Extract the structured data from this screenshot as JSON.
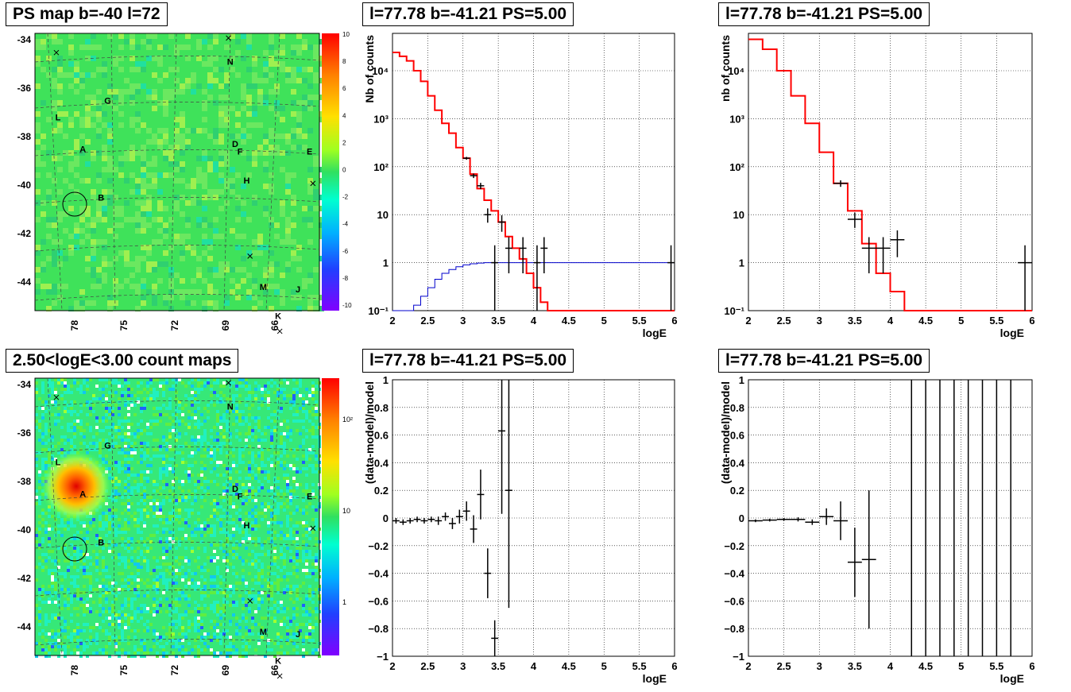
{
  "titles": {
    "map_top": "PS map b=-40 l=72",
    "map_bottom": "2.50<logE<3.00 count maps",
    "plot": "l=77.78 b=-41.21 PS=5.00"
  },
  "map_axes": {
    "y_ticks": [
      "-34",
      "-36",
      "-38",
      "-40",
      "-42",
      "-44"
    ],
    "x_ticks": [
      "78",
      "75",
      "72",
      "69",
      "66"
    ],
    "markers": [
      {
        "label": "L",
        "lon": 79.2,
        "lat": -37.2
      },
      {
        "label": "G",
        "lon": 76.2,
        "lat": -36.5
      },
      {
        "label": "A",
        "lon": 77.7,
        "lat": -38.5
      },
      {
        "label": "B",
        "lon": 76.6,
        "lat": -40.5
      },
      {
        "label": "N",
        "lon": 68.8,
        "lat": -34.9
      },
      {
        "label": "D",
        "lon": 68.5,
        "lat": -38.3
      },
      {
        "label": "F",
        "lon": 68.2,
        "lat": -38.6
      },
      {
        "label": "H",
        "lon": 67.8,
        "lat": -39.8
      },
      {
        "label": "E",
        "lon": 64.0,
        "lat": -38.6
      },
      {
        "label": "M",
        "lon": 66.8,
        "lat": -44.2
      },
      {
        "label": "J",
        "lon": 64.7,
        "lat": -44.3
      },
      {
        "label": "K",
        "lon": 65.9,
        "lat": -45.4
      }
    ],
    "cross_marks": [
      [
        79.3,
        -34.4
      ],
      [
        68.9,
        -33.8
      ],
      [
        63.8,
        -39.8
      ],
      [
        67.6,
        -42.8
      ],
      [
        65.8,
        -45.9
      ]
    ]
  },
  "colorbars": {
    "top": {
      "labels": [
        "10",
        "8",
        "6",
        "4",
        "2",
        "0",
        "-2",
        "-4",
        "-6",
        "-8",
        "-10"
      ],
      "range": [
        -10,
        10
      ]
    },
    "bottom": {
      "labels": [
        "10²",
        "10",
        "1"
      ],
      "log": true
    }
  },
  "chart_data": [
    {
      "id": "spectrum_left",
      "type": "line",
      "xlabel": "logE",
      "ylabel": "Nb of counts",
      "xlim": [
        2,
        6
      ],
      "ylim": [
        0.1,
        60000
      ],
      "ylog": true,
      "grid": true,
      "x_ticks": [
        "2",
        "2.5",
        "3",
        "3.5",
        "4",
        "4.5",
        "5",
        "5.5",
        "6"
      ],
      "y_ticks": [
        {
          "v": 0.1,
          "t": "10⁻¹"
        },
        {
          "v": 1,
          "t": "1"
        },
        {
          "v": 10,
          "t": "10"
        },
        {
          "v": 100,
          "t": "10²"
        },
        {
          "v": 1000,
          "t": "10³"
        },
        {
          "v": 10000,
          "t": "10⁴"
        }
      ],
      "bin_width": 0.1,
      "model_red": [
        24000,
        20000,
        16000,
        10000,
        6000,
        3000,
        1500,
        800,
        500,
        250,
        150,
        70,
        35,
        20,
        12,
        7,
        3.5,
        2,
        1.2,
        0.6,
        0.3,
        0.15,
        0.1,
        0.1,
        0.1,
        0.1,
        0.1,
        0.1,
        0.1,
        0.1,
        0.1,
        0.1,
        0.1,
        0.1,
        0.1,
        0.1,
        0.1,
        0.1,
        0.1,
        0.1
      ],
      "model_blue": [
        0.1,
        0.1,
        0.1,
        0.13,
        0.2,
        0.3,
        0.45,
        0.6,
        0.72,
        0.82,
        0.9,
        0.95,
        0.98,
        1,
        1,
        1,
        1,
        1,
        1,
        1,
        1,
        1,
        1,
        1,
        1,
        1,
        1,
        1,
        1,
        1,
        1,
        1,
        1,
        1,
        1,
        1,
        1,
        1,
        1,
        1
      ],
      "data_points": [
        {
          "x": 3.05,
          "y": 150,
          "lo": 140,
          "hi": 160
        },
        {
          "x": 3.15,
          "y": 65,
          "lo": 58,
          "hi": 72
        },
        {
          "x": 3.25,
          "y": 40,
          "lo": 34,
          "hi": 46
        },
        {
          "x": 3.35,
          "y": 10,
          "lo": 6.8,
          "hi": 13.5
        },
        {
          "x": 3.45,
          "y": 1,
          "lo": 0.1,
          "hi": 2.3
        },
        {
          "x": 3.55,
          "y": 7,
          "lo": 4.4,
          "hi": 9.7
        },
        {
          "x": 3.65,
          "y": 2,
          "lo": 0.6,
          "hi": 3.4
        },
        {
          "x": 3.85,
          "y": 2,
          "lo": 0.6,
          "hi": 3.4
        },
        {
          "x": 4.05,
          "y": 1,
          "lo": 0.1,
          "hi": 2.3
        },
        {
          "x": 4.15,
          "y": 2,
          "lo": 0.6,
          "hi": 3.4
        },
        {
          "x": 5.95,
          "y": 1,
          "lo": 0.1,
          "hi": 2.3
        }
      ]
    },
    {
      "id": "spectrum_right",
      "type": "line",
      "xlabel": "logE",
      "ylabel": "nb of counts",
      "xlim": [
        2,
        6
      ],
      "ylim": [
        0.1,
        60000
      ],
      "ylog": true,
      "grid": true,
      "x_ticks": [
        "2",
        "2.5",
        "3",
        "3.5",
        "4",
        "4.5",
        "5",
        "5.5",
        "6"
      ],
      "y_ticks": [
        {
          "v": 0.1,
          "t": "10⁻¹"
        },
        {
          "v": 1,
          "t": "1"
        },
        {
          "v": 10,
          "t": "10"
        },
        {
          "v": 100,
          "t": "10²"
        },
        {
          "v": 1000,
          "t": "10³"
        },
        {
          "v": 10000,
          "t": "10⁴"
        }
      ],
      "bin_width": 0.2,
      "model_red": [
        45000,
        28000,
        10000,
        3000,
        800,
        200,
        45,
        12,
        2.5,
        0.6,
        0.25,
        0.1,
        0.1,
        0.1,
        0.1,
        0.1,
        0.1,
        0.1,
        0.1,
        0.1
      ],
      "data_points": [
        {
          "x": 3.3,
          "y": 45,
          "lo": 38,
          "hi": 52
        },
        {
          "x": 3.5,
          "y": 8,
          "lo": 5.3,
          "hi": 11
        },
        {
          "x": 3.7,
          "y": 2,
          "lo": 0.6,
          "hi": 3.4
        },
        {
          "x": 3.9,
          "y": 2,
          "lo": 0.6,
          "hi": 3.4
        },
        {
          "x": 4.1,
          "y": 3,
          "lo": 1.3,
          "hi": 4.7
        },
        {
          "x": 5.9,
          "y": 1,
          "lo": 0.1,
          "hi": 2.3
        }
      ]
    },
    {
      "id": "residual_left",
      "type": "scatter",
      "xlabel": "logE",
      "ylabel": "(data-model)/model",
      "xlim": [
        2,
        6
      ],
      "ylim": [
        -1,
        1
      ],
      "grid": true,
      "x_ticks": [
        "2",
        "2.5",
        "3",
        "3.5",
        "4",
        "4.5",
        "5",
        "5.5",
        "6"
      ],
      "y_ticks": [
        "1",
        "0.8",
        "0.6",
        "0.4",
        "0.2",
        "0",
        "−0.2",
        "−0.4",
        "−0.6",
        "−0.8",
        "−1"
      ],
      "bin_width": 0.1,
      "points": [
        {
          "x": 2.05,
          "y": -0.02,
          "e": 0.02
        },
        {
          "x": 2.15,
          "y": -0.03,
          "e": 0.02
        },
        {
          "x": 2.25,
          "y": -0.02,
          "e": 0.02
        },
        {
          "x": 2.35,
          "y": -0.01,
          "e": 0.02
        },
        {
          "x": 2.45,
          "y": -0.02,
          "e": 0.02
        },
        {
          "x": 2.55,
          "y": -0.01,
          "e": 0.02
        },
        {
          "x": 2.65,
          "y": -0.02,
          "e": 0.03
        },
        {
          "x": 2.75,
          "y": 0.01,
          "e": 0.03
        },
        {
          "x": 2.85,
          "y": -0.04,
          "e": 0.04
        },
        {
          "x": 2.95,
          "y": 0.01,
          "e": 0.05
        },
        {
          "x": 3.05,
          "y": 0.05,
          "e": 0.07
        },
        {
          "x": 3.15,
          "y": -0.08,
          "e": 0.1
        },
        {
          "x": 3.25,
          "y": 0.17,
          "e": 0.18
        },
        {
          "x": 3.35,
          "y": -0.4,
          "e": 0.18
        },
        {
          "x": 3.45,
          "y": -0.87,
          "e": 0.13
        },
        {
          "x": 3.55,
          "y": 0.63,
          "e": 0.6
        },
        {
          "x": 3.65,
          "y": 0.2,
          "e": 0.85
        }
      ]
    },
    {
      "id": "residual_right",
      "type": "scatter",
      "xlabel": "logE",
      "ylabel": "(data-model)/model",
      "xlim": [
        2,
        6
      ],
      "ylim": [
        -1,
        1
      ],
      "grid": true,
      "x_ticks": [
        "2",
        "2.5",
        "3",
        "3.5",
        "4",
        "4.5",
        "5",
        "5.5",
        "6"
      ],
      "y_ticks": [
        "1",
        "0.8",
        "0.6",
        "0.4",
        "0.2",
        "0",
        "−0.2",
        "−0.4",
        "−0.6",
        "−0.8",
        "−1"
      ],
      "bin_width": 0.2,
      "points": [
        {
          "x": 2.1,
          "y": -0.02,
          "e": 0.01
        },
        {
          "x": 2.3,
          "y": -0.015,
          "e": 0.01
        },
        {
          "x": 2.5,
          "y": -0.01,
          "e": 0.01
        },
        {
          "x": 2.7,
          "y": -0.01,
          "e": 0.015
        },
        {
          "x": 2.9,
          "y": -0.03,
          "e": 0.02
        },
        {
          "x": 3.1,
          "y": 0.01,
          "e": 0.06
        },
        {
          "x": 3.3,
          "y": -0.02,
          "e": 0.14
        },
        {
          "x": 3.5,
          "y": -0.32,
          "e": 0.25
        },
        {
          "x": 3.7,
          "y": -0.3,
          "e": 0.5
        }
      ],
      "full_bars_x": [
        4.3,
        4.5,
        4.7,
        4.9,
        5.1,
        5.3,
        5.5,
        5.7
      ]
    }
  ]
}
